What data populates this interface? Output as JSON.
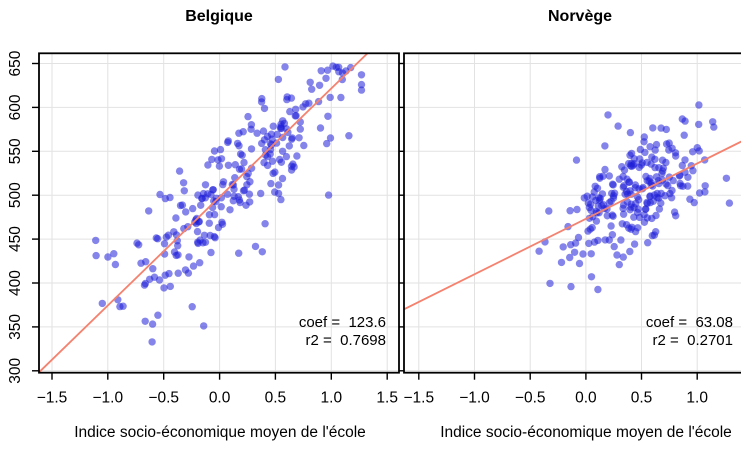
{
  "figure": {
    "background_color": "#ffffff",
    "point_color": "#1f1fd8",
    "point_opacity": 0.55,
    "regression_line_color": "#f4826f",
    "grid_color": "#e2e2e2",
    "frame_color": "#000000",
    "text_color": "#000000"
  },
  "chart_data": [
    {
      "type": "scatter",
      "title": "Belgique",
      "xlabel": "Indice socio-économique moyen de l'école",
      "ylabel": "",
      "xlim": [
        -1.616,
        1.606
      ],
      "ylim": [
        297.8,
        661.6
      ],
      "xticks": [
        -1.5,
        -1.0,
        -0.5,
        0.0,
        0.5,
        1.0,
        1.5
      ],
      "xtick_labels": [
        "−1.5",
        "−1.0",
        "−0.5",
        "0.0",
        "0.5",
        "1.0",
        "1.5"
      ],
      "yticks": [
        300,
        350,
        400,
        450,
        500,
        550,
        600,
        650
      ],
      "ytick_labels": [
        "300",
        "350",
        "400",
        "450",
        "500",
        "550",
        "600",
        "650"
      ],
      "grid": true,
      "regression": {
        "slope": 123.6,
        "intercept": 498,
        "r2": 0.7698
      },
      "annotation_lines": [
        "coef =  123.6",
        "r2 =  0.7698"
      ],
      "points": {
        "n": 248,
        "seed": 11,
        "x_mean": 0.15,
        "x_sd": 0.55,
        "x_min": -1.28,
        "x_max": 1.27,
        "resid_sd": 36.5,
        "y_min": 312,
        "y_max": 648
      }
    },
    {
      "type": "scatter",
      "title": "Norvège",
      "xlabel": "Indice socio-économique moyen de l'école",
      "ylabel": "",
      "xlim": [
        -1.633,
        1.42
      ],
      "ylim": [
        297.8,
        661.6
      ],
      "xticks": [
        -1.5,
        -1.0,
        -0.5,
        0.0,
        0.5,
        1.0
      ],
      "xtick_labels": [
        "−1.5",
        "−1.0",
        "−0.5",
        "0.0",
        "0.5",
        "1.0"
      ],
      "yticks": [
        300,
        350,
        400,
        450,
        500,
        550,
        600,
        650
      ],
      "ytick_labels": [],
      "grid": true,
      "regression": {
        "slope": 63.08,
        "intercept": 473,
        "r2": 0.2701
      },
      "annotation_lines": [
        "coef =  63.08",
        "r2 =  0.2701"
      ],
      "points": {
        "n": 240,
        "seed": 23,
        "x_mean": 0.42,
        "x_sd": 0.32,
        "x_min": -0.42,
        "x_max": 1.33,
        "resid_sd": 33,
        "y_min": 392,
        "y_max": 641
      }
    }
  ]
}
